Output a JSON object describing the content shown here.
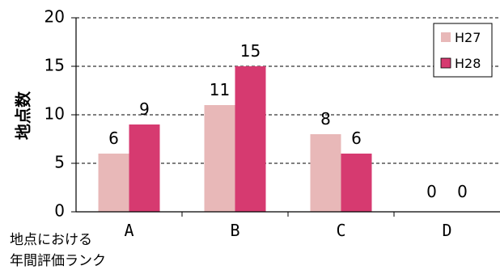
{
  "chart_data": {
    "type": "bar",
    "categories": [
      "A",
      "B",
      "C",
      "D"
    ],
    "series": [
      {
        "name": "H27",
        "values": [
          6,
          11,
          8,
          0
        ],
        "color": "#e8b8b8"
      },
      {
        "name": "H28",
        "values": [
          9,
          15,
          6,
          0
        ],
        "color": "#d63a70"
      }
    ],
    "ylabel": "地点数",
    "xlabel_lines": [
      "地点における",
      "年間評価ランク"
    ],
    "ylim": [
      0,
      20
    ],
    "yticks": [
      0,
      5,
      10,
      15,
      20
    ],
    "grid": "horizontal dashed",
    "legend": "top-right",
    "data_labels": true
  }
}
